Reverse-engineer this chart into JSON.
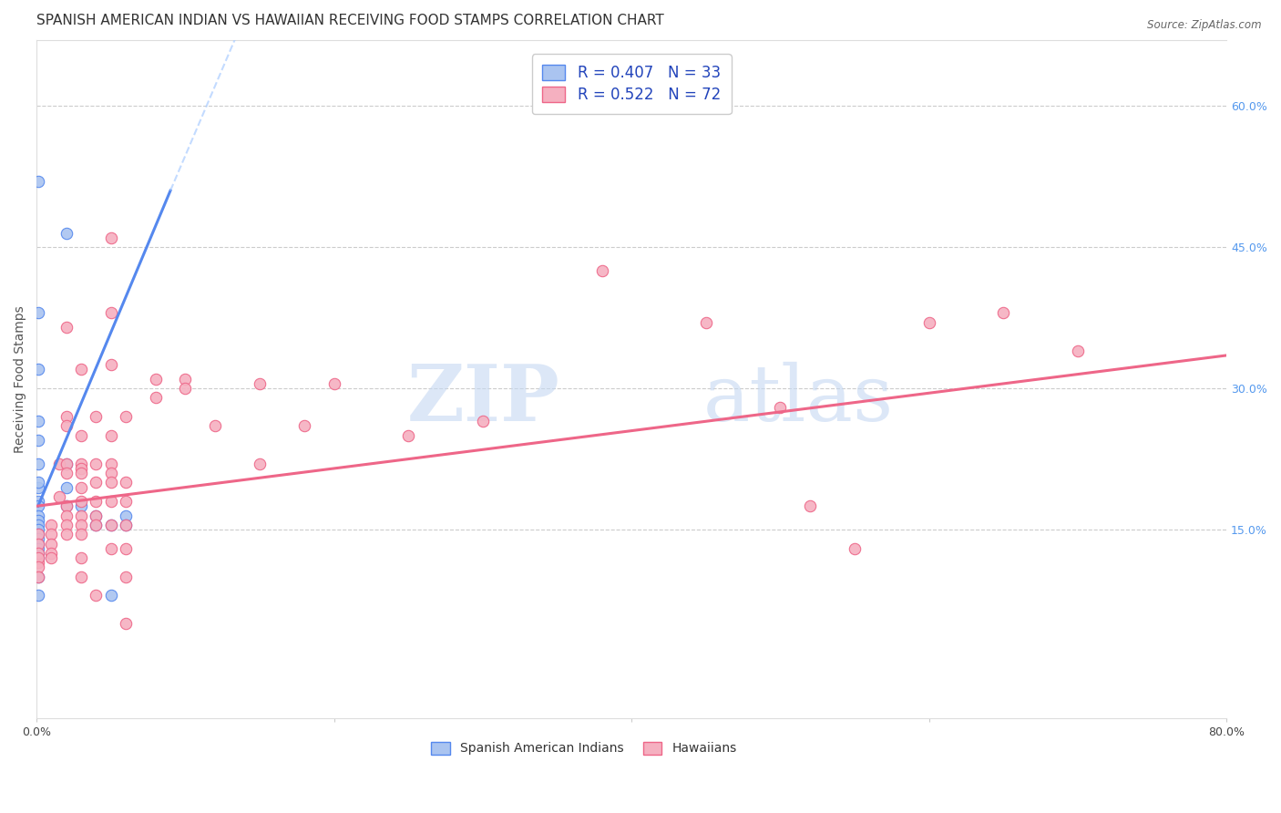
{
  "title": "SPANISH AMERICAN INDIAN VS HAWAIIAN RECEIVING FOOD STAMPS CORRELATION CHART",
  "source": "Source: ZipAtlas.com",
  "ylabel": "Receiving Food Stamps",
  "xlim": [
    0.0,
    0.8
  ],
  "ylim": [
    -0.05,
    0.67
  ],
  "xtick_positions": [
    0.0,
    0.2,
    0.4,
    0.6,
    0.8
  ],
  "xticklabels": [
    "0.0%",
    "",
    "",
    "",
    "80.0%"
  ],
  "yticks_right": [
    0.15,
    0.3,
    0.45,
    0.6
  ],
  "ytick_right_labels": [
    "15.0%",
    "30.0%",
    "45.0%",
    "60.0%"
  ],
  "background_color": "#ffffff",
  "grid_color": "#cccccc",
  "watermark_zip": "ZIP",
  "watermark_atlas": "atlas",
  "blue_color": "#5588ee",
  "blue_fill": "#aac4f0",
  "pink_color": "#ee6688",
  "pink_fill": "#f5b0c0",
  "scatter_blue": [
    [
      0.001,
      0.52
    ],
    [
      0.001,
      0.38
    ],
    [
      0.001,
      0.265
    ],
    [
      0.001,
      0.245
    ],
    [
      0.001,
      0.22
    ],
    [
      0.001,
      0.195
    ],
    [
      0.001,
      0.18
    ],
    [
      0.001,
      0.175
    ],
    [
      0.001,
      0.165
    ],
    [
      0.001,
      0.16
    ],
    [
      0.001,
      0.155
    ],
    [
      0.001,
      0.15
    ],
    [
      0.001,
      0.145
    ],
    [
      0.001,
      0.14
    ],
    [
      0.001,
      0.135
    ],
    [
      0.001,
      0.13
    ],
    [
      0.001,
      0.125
    ],
    [
      0.001,
      0.12
    ],
    [
      0.001,
      0.1
    ],
    [
      0.001,
      0.08
    ],
    [
      0.02,
      0.465
    ],
    [
      0.02,
      0.22
    ],
    [
      0.02,
      0.195
    ],
    [
      0.02,
      0.175
    ],
    [
      0.03,
      0.175
    ],
    [
      0.04,
      0.165
    ],
    [
      0.04,
      0.155
    ],
    [
      0.05,
      0.155
    ],
    [
      0.05,
      0.08
    ],
    [
      0.06,
      0.165
    ],
    [
      0.06,
      0.155
    ],
    [
      0.001,
      0.32
    ],
    [
      0.001,
      0.2
    ]
  ],
  "scatter_pink": [
    [
      0.001,
      0.115
    ],
    [
      0.001,
      0.145
    ],
    [
      0.001,
      0.135
    ],
    [
      0.001,
      0.125
    ],
    [
      0.001,
      0.12
    ],
    [
      0.001,
      0.11
    ],
    [
      0.001,
      0.1
    ],
    [
      0.01,
      0.155
    ],
    [
      0.01,
      0.145
    ],
    [
      0.01,
      0.135
    ],
    [
      0.01,
      0.125
    ],
    [
      0.01,
      0.12
    ],
    [
      0.015,
      0.22
    ],
    [
      0.015,
      0.185
    ],
    [
      0.02,
      0.365
    ],
    [
      0.02,
      0.27
    ],
    [
      0.02,
      0.26
    ],
    [
      0.02,
      0.22
    ],
    [
      0.02,
      0.21
    ],
    [
      0.02,
      0.175
    ],
    [
      0.02,
      0.165
    ],
    [
      0.02,
      0.155
    ],
    [
      0.02,
      0.145
    ],
    [
      0.03,
      0.32
    ],
    [
      0.03,
      0.25
    ],
    [
      0.03,
      0.22
    ],
    [
      0.03,
      0.215
    ],
    [
      0.03,
      0.21
    ],
    [
      0.03,
      0.195
    ],
    [
      0.03,
      0.18
    ],
    [
      0.03,
      0.165
    ],
    [
      0.03,
      0.155
    ],
    [
      0.03,
      0.145
    ],
    [
      0.03,
      0.1
    ],
    [
      0.03,
      0.12
    ],
    [
      0.04,
      0.27
    ],
    [
      0.04,
      0.22
    ],
    [
      0.04,
      0.2
    ],
    [
      0.04,
      0.18
    ],
    [
      0.04,
      0.165
    ],
    [
      0.04,
      0.155
    ],
    [
      0.04,
      0.08
    ],
    [
      0.05,
      0.46
    ],
    [
      0.05,
      0.38
    ],
    [
      0.05,
      0.325
    ],
    [
      0.05,
      0.25
    ],
    [
      0.05,
      0.22
    ],
    [
      0.05,
      0.21
    ],
    [
      0.05,
      0.2
    ],
    [
      0.05,
      0.18
    ],
    [
      0.05,
      0.155
    ],
    [
      0.05,
      0.13
    ],
    [
      0.06,
      0.27
    ],
    [
      0.06,
      0.2
    ],
    [
      0.06,
      0.18
    ],
    [
      0.06,
      0.155
    ],
    [
      0.06,
      0.13
    ],
    [
      0.06,
      0.1
    ],
    [
      0.06,
      0.05
    ],
    [
      0.08,
      0.31
    ],
    [
      0.08,
      0.29
    ],
    [
      0.1,
      0.31
    ],
    [
      0.1,
      0.3
    ],
    [
      0.12,
      0.26
    ],
    [
      0.15,
      0.305
    ],
    [
      0.15,
      0.22
    ],
    [
      0.18,
      0.26
    ],
    [
      0.2,
      0.305
    ],
    [
      0.25,
      0.25
    ],
    [
      0.3,
      0.265
    ],
    [
      0.38,
      0.425
    ],
    [
      0.45,
      0.37
    ],
    [
      0.5,
      0.28
    ],
    [
      0.52,
      0.175
    ],
    [
      0.55,
      0.13
    ],
    [
      0.6,
      0.37
    ],
    [
      0.65,
      0.38
    ],
    [
      0.7,
      0.34
    ]
  ],
  "blue_line_solid": [
    [
      0.001,
      0.175
    ],
    [
      0.09,
      0.51
    ]
  ],
  "blue_line_dash": [
    [
      0.09,
      0.51
    ],
    [
      0.19,
      0.88
    ]
  ],
  "pink_line": [
    [
      0.0,
      0.175
    ],
    [
      0.8,
      0.335
    ]
  ],
  "title_fontsize": 11,
  "axis_label_fontsize": 10,
  "tick_fontsize": 9,
  "legend_fontsize": 12
}
